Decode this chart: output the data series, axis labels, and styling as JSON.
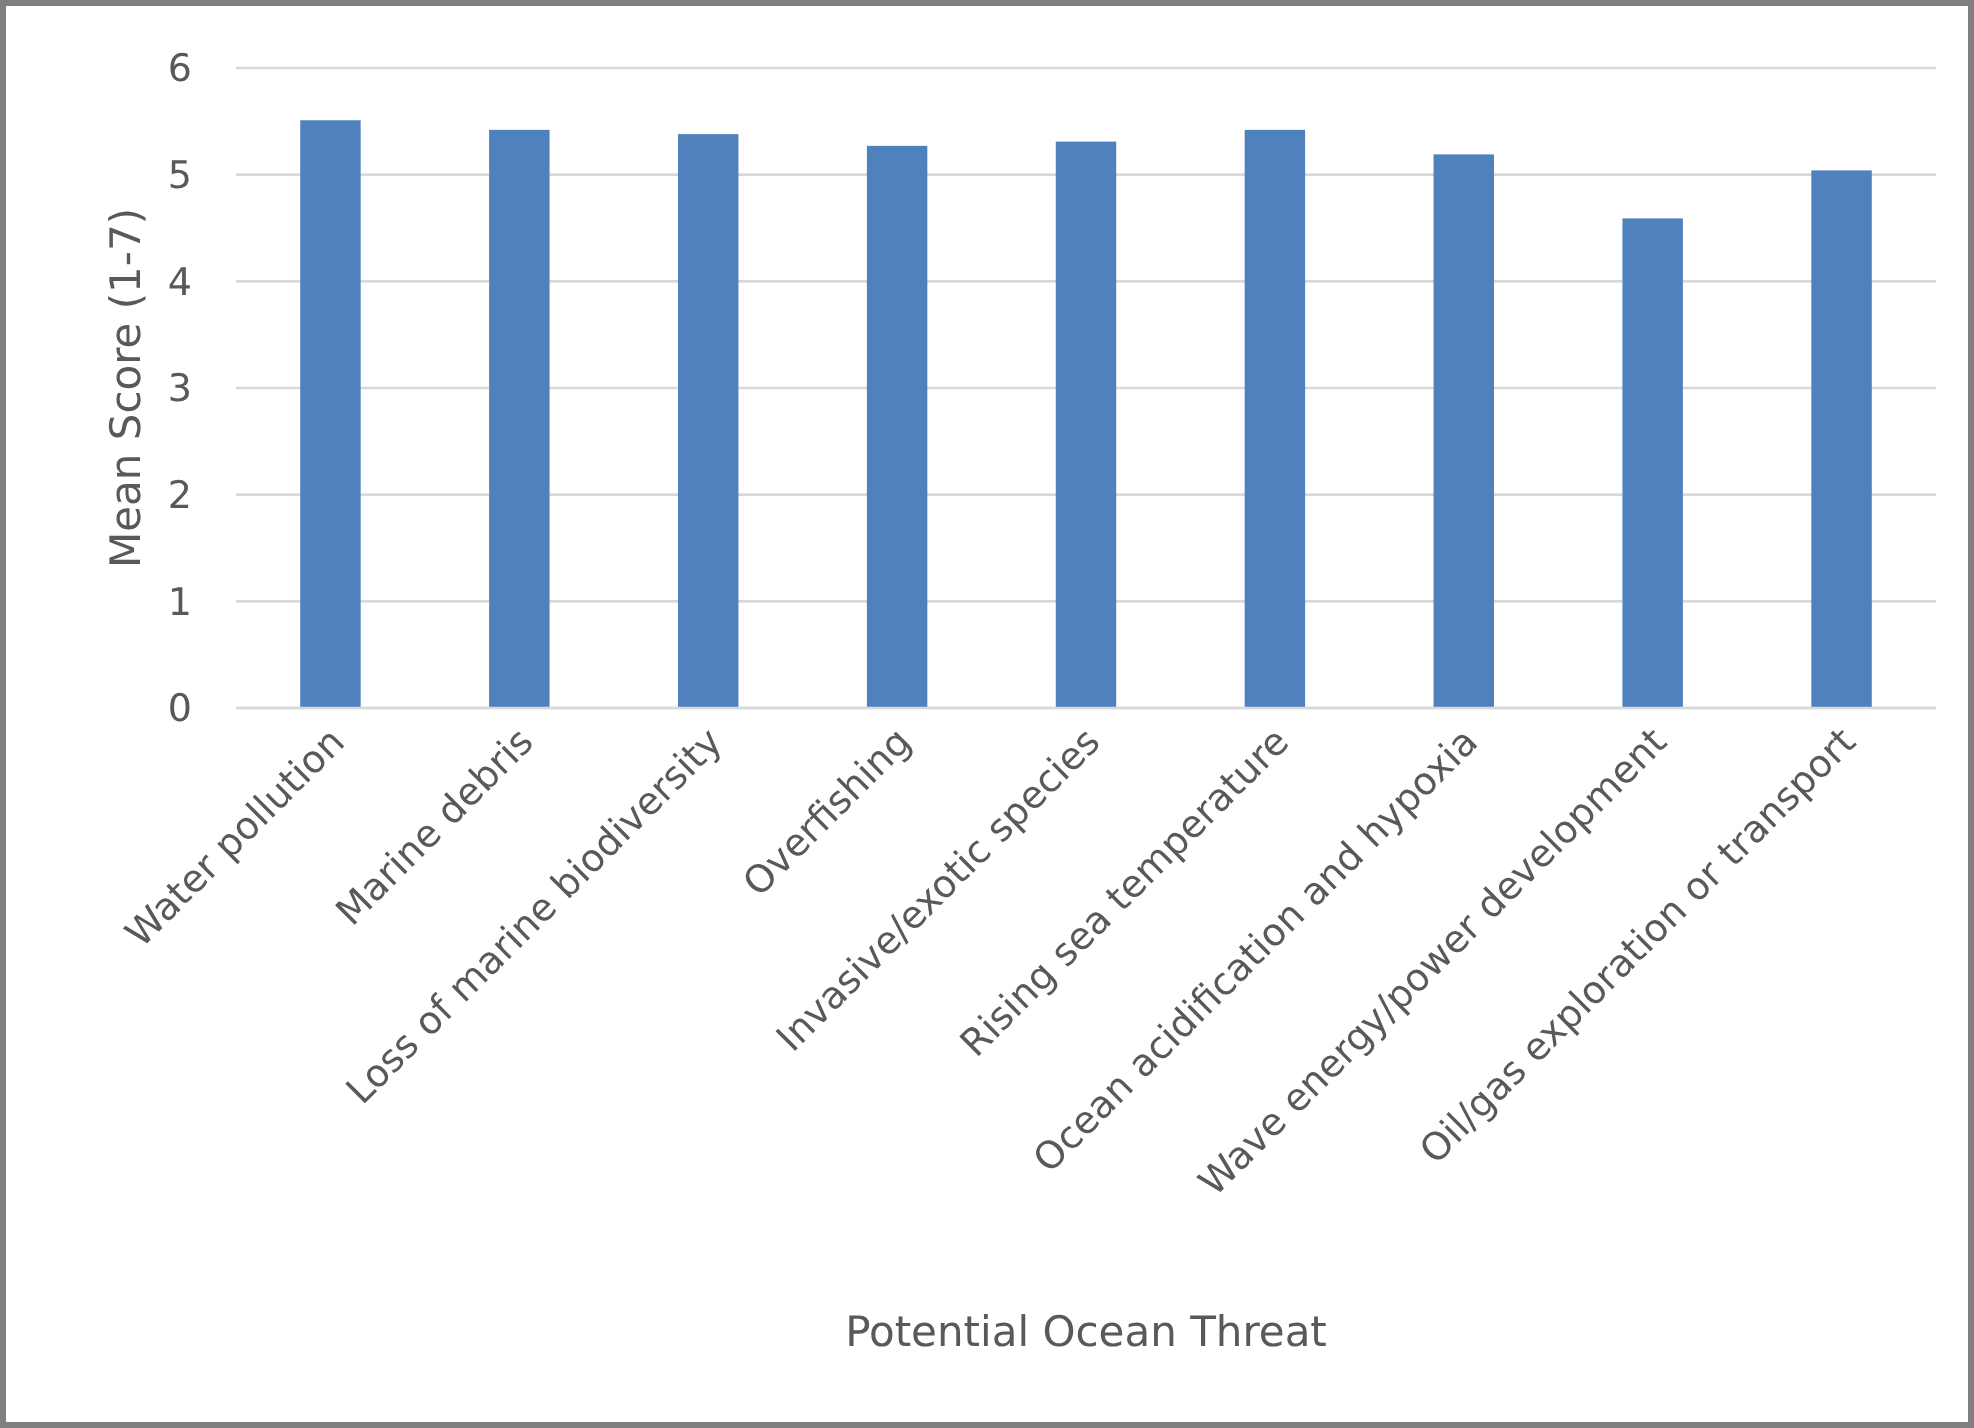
{
  "chart_data": {
    "type": "bar",
    "xlabel": "Potential Ocean Threat",
    "ylabel": "Mean Score (1-7)",
    "categories": [
      "Water pollution",
      "Marine debris",
      "Loss of marine biodiversity",
      "Overfishing",
      "Invasive/exotic species",
      "Rising sea temperature",
      "Ocean acidification and hypoxia",
      "Wave energy/power development",
      "Oil/gas exploration or transport"
    ],
    "values": [
      5.51,
      5.42,
      5.38,
      5.27,
      5.31,
      5.42,
      5.19,
      4.59,
      5.04
    ],
    "color": "#4f81bd",
    "ylim": [
      0,
      6
    ],
    "yticks": [
      0,
      1,
      2,
      3,
      4,
      5,
      6
    ],
    "grid": "y"
  }
}
